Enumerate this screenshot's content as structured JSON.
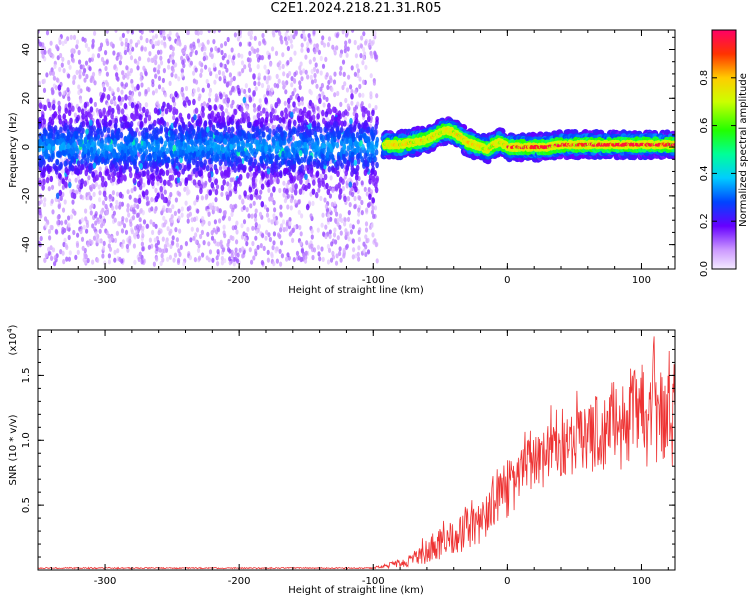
{
  "title": "C2E1.2024.218.21.31.R05",
  "chart_data": [
    {
      "type": "heatmap",
      "title": "C2E1.2024.218.21.31.R05",
      "xlabel": "Height of straight line (km)",
      "ylabel": "Frequency (Hz)",
      "xlim": [
        -350,
        125
      ],
      "ylim": [
        -50,
        48
      ],
      "x_ticks": [
        -300,
        -200,
        -100,
        0,
        100
      ],
      "x_tick_labels": [
        "-300",
        "-200",
        "-100",
        "0",
        "100"
      ],
      "y_ticks": [
        -40,
        -20,
        0,
        20,
        40
      ],
      "y_tick_labels": [
        "-40",
        "-20",
        "0",
        "20",
        "40"
      ],
      "grid": false,
      "colorbar": {
        "label": "Normalized spectral amplitude",
        "range": [
          0,
          1
        ],
        "ticks": [
          0.0,
          0.2,
          0.4,
          0.6,
          0.8
        ],
        "tick_labels": [
          "0.0",
          "0.2",
          "0.4",
          "0.6",
          "0.8"
        ],
        "colormap": "rainbow"
      },
      "regions": [
        {
          "x_range": [
            -350,
            -97
          ],
          "center_freq_hz": 0,
          "core_halfwidth_hz": 8,
          "spread_hz": 48,
          "peak_amplitude": 0.5
        },
        {
          "x_range": [
            -92,
            125
          ],
          "center_freq_hz": "track",
          "core_halfwidth_hz": 3,
          "peak_amplitude": 1.0
        }
      ],
      "ridge_track": {
        "x": [
          -92,
          -80,
          -70,
          -60,
          -50,
          -45,
          -40,
          -35,
          -30,
          -25,
          -20,
          -15,
          -10,
          -5,
          0,
          10,
          20,
          30,
          40,
          60,
          80,
          100,
          125
        ],
        "y": [
          1,
          1,
          2,
          3,
          6,
          7,
          6,
          4,
          2,
          1,
          0,
          -1,
          1,
          2,
          0,
          0,
          0,
          0,
          1,
          1,
          1,
          1,
          1
        ]
      }
    },
    {
      "type": "line",
      "xlabel": "Height of straight line (km)",
      "ylabel": "SNR (10 * v/v)",
      "y_scale_label": "(x10",
      "y_scale_exponent": "4",
      "y_scale_close": ")",
      "xlim": [
        -350,
        125
      ],
      "ylim": [
        0,
        1.85
      ],
      "x_ticks": [
        -300,
        -200,
        -100,
        0,
        100
      ],
      "x_tick_labels": [
        "-300",
        "-200",
        "-100",
        "0",
        "100"
      ],
      "y_ticks": [
        0.5,
        1.0,
        1.5
      ],
      "y_tick_labels": [
        "0.5",
        "1.0",
        "1.5"
      ],
      "grid": false,
      "series": [
        {
          "color": "#ee3333",
          "envelope": {
            "x": [
              -350,
              -100,
              -75,
              -60,
              -40,
              -20,
              0,
              20,
              40,
              60,
              80,
              100,
              125
            ],
            "y_low": [
              0.01,
              0.01,
              0.02,
              0.05,
              0.1,
              0.2,
              0.4,
              0.6,
              0.7,
              0.75,
              0.75,
              0.75,
              0.75
            ],
            "y_high": [
              0.02,
              0.02,
              0.1,
              0.25,
              0.4,
              0.55,
              0.85,
              1.05,
              1.15,
              1.3,
              1.5,
              1.6,
              1.6
            ]
          }
        }
      ]
    }
  ]
}
